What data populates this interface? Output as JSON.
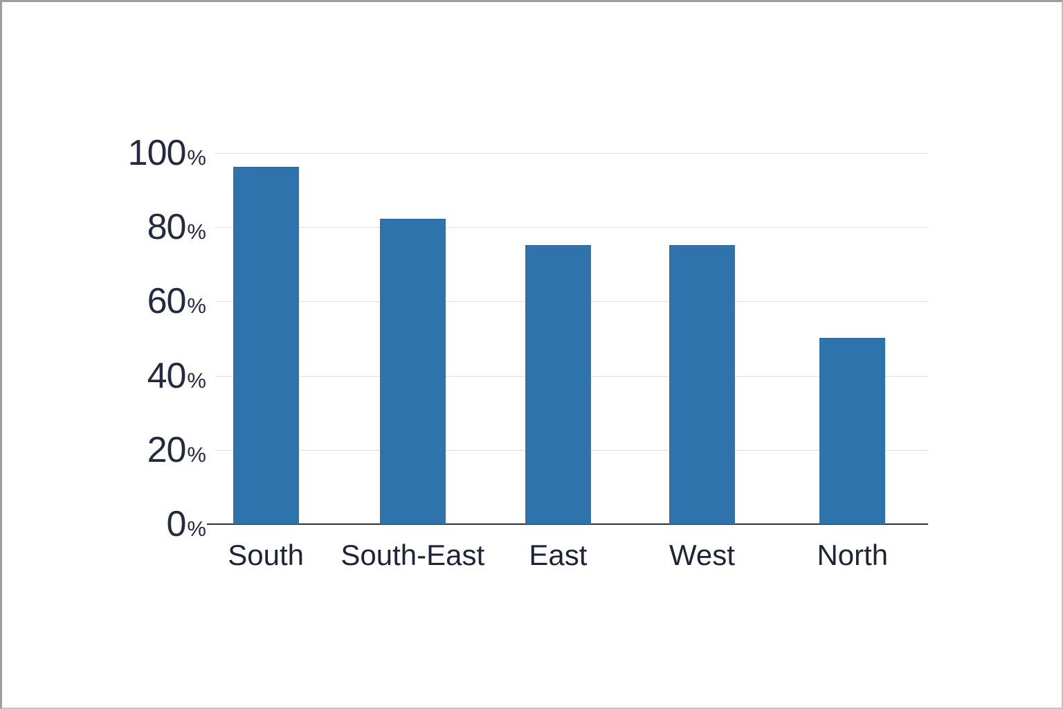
{
  "chart_data": {
    "type": "bar",
    "categories": [
      "South",
      "South-East",
      "East",
      "West",
      "North"
    ],
    "values": [
      96,
      82,
      75,
      75,
      50
    ],
    "value_unit": "%",
    "ylim": [
      0,
      100
    ],
    "yticks": [
      0,
      20,
      40,
      60,
      80,
      100
    ],
    "ytick_unit": "%",
    "grid": true,
    "legend": "none",
    "colors": {
      "bar": "#2e73ab",
      "axis_line": "#2a3046",
      "gridline": "#dddde1",
      "tick_text": "#242a40",
      "background": "#ffffff"
    }
  }
}
